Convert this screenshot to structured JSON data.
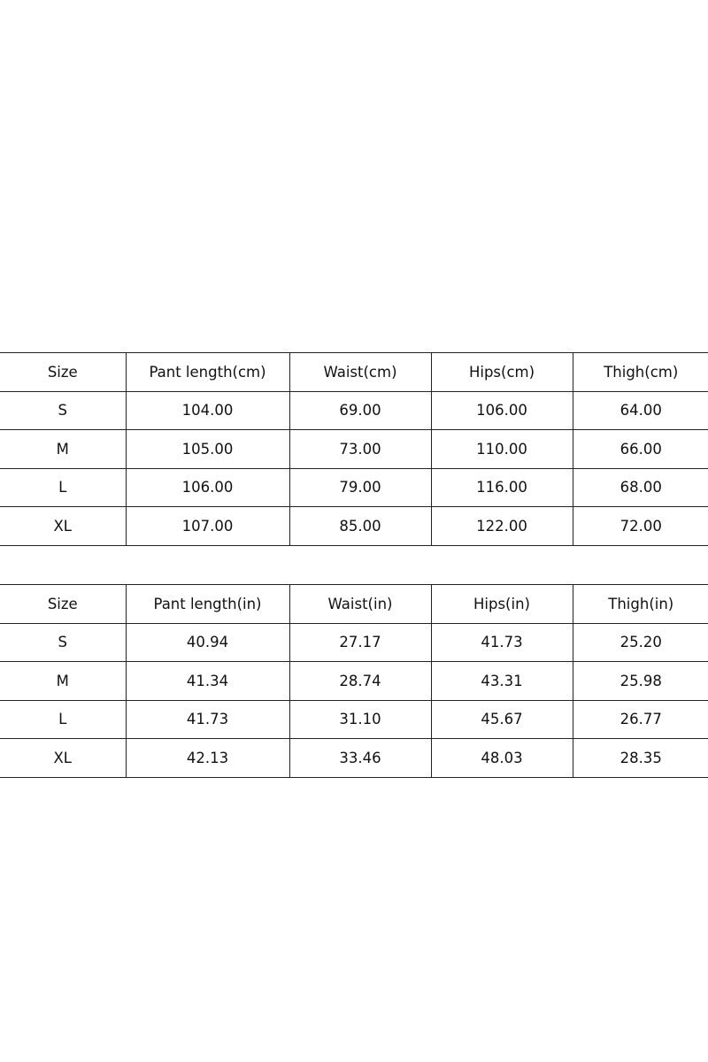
{
  "tables": [
    {
      "headers": [
        "Size",
        "Pant length(cm)",
        "Waist(cm)",
        "Hips(cm)",
        "Thigh(cm)"
      ],
      "rows": [
        [
          "S",
          "104.00",
          "69.00",
          "106.00",
          "64.00"
        ],
        [
          "M",
          "105.00",
          "73.00",
          "110.00",
          "66.00"
        ],
        [
          "L",
          "106.00",
          "79.00",
          "116.00",
          "68.00"
        ],
        [
          "XL",
          "107.00",
          "85.00",
          "122.00",
          "72.00"
        ]
      ]
    },
    {
      "headers": [
        "Size",
        "Pant length(in)",
        "Waist(in)",
        "Hips(in)",
        "Thigh(in)"
      ],
      "rows": [
        [
          "S",
          "40.94",
          "27.17",
          "41.73",
          "25.20"
        ],
        [
          "M",
          "41.34",
          "28.74",
          "43.31",
          "25.98"
        ],
        [
          "L",
          "41.73",
          "31.10",
          "45.67",
          "26.77"
        ],
        [
          "XL",
          "42.13",
          "33.46",
          "48.03",
          "28.35"
        ]
      ]
    }
  ]
}
